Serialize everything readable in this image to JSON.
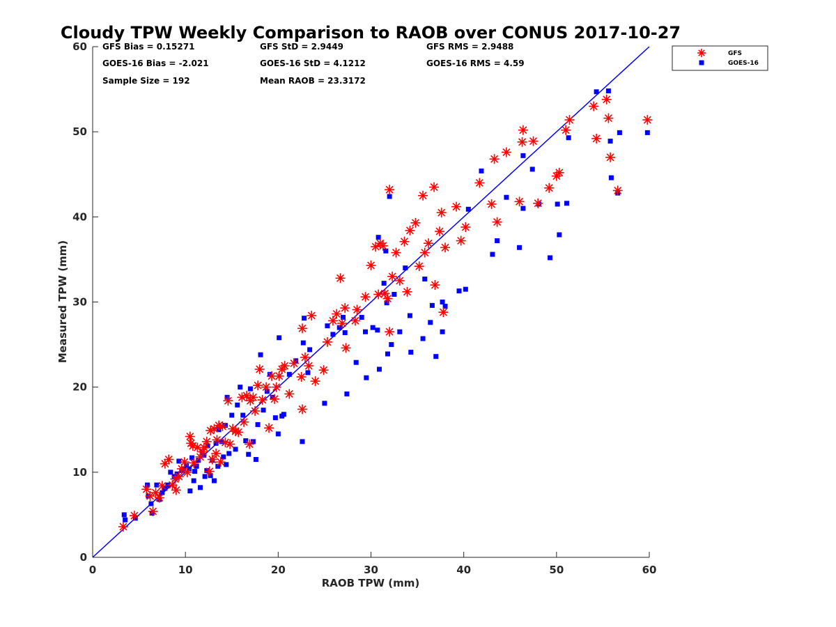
{
  "chart_data": {
    "type": "scatter",
    "title": "Cloudy TPW Weekly Comparison to RAOB over CONUS 2017-10-27",
    "xlabel": "RAOB TPW (mm)",
    "ylabel": "Measured TPW (mm)",
    "xlim": [
      0,
      60
    ],
    "ylim": [
      0,
      60
    ],
    "xticks": [
      "0",
      "10",
      "20",
      "30",
      "40",
      "50",
      "60"
    ],
    "yticks": [
      "0",
      "10",
      "20",
      "30",
      "40",
      "50",
      "60"
    ],
    "grid": false,
    "legend_position": "outside top-right",
    "stats": [
      [
        "GFS Bias = 0.15271",
        "GFS StD = 2.9449",
        "GFS RMS = 2.9488"
      ],
      [
        "GOES-16 Bias = -2.021",
        "GOES-16 StD = 4.1212",
        "GOES-16 RMS = 4.59"
      ],
      [
        "Sample Size = 192",
        "Mean RAOB = 23.3172",
        ""
      ]
    ],
    "reference_line": {
      "type": "one-to-one",
      "from": [
        0,
        0
      ],
      "to": [
        60,
        60
      ],
      "color": "#0000ff"
    },
    "series": [
      {
        "name": "GFS",
        "marker": "asterisk",
        "color": "#ff0000",
        "points": [
          [
            3.3,
            3.6
          ],
          [
            4.5,
            4.9
          ],
          [
            5.8,
            8.0
          ],
          [
            6.2,
            7.2
          ],
          [
            6.5,
            5.4
          ],
          [
            6.8,
            7.6
          ],
          [
            7.2,
            7.0
          ],
          [
            7.5,
            8.4
          ],
          [
            7.8,
            11.0
          ],
          [
            8.2,
            11.5
          ],
          [
            8.6,
            8.5
          ],
          [
            9.0,
            7.9
          ],
          [
            9.3,
            9.5
          ],
          [
            9.6,
            10.4
          ],
          [
            9.9,
            11.2
          ],
          [
            10.2,
            10.0
          ],
          [
            10.5,
            14.2
          ],
          [
            10.6,
            13.4
          ],
          [
            10.9,
            11.1
          ],
          [
            11.3,
            12.9
          ],
          [
            11.6,
            11.8
          ],
          [
            12.0,
            12.9
          ],
          [
            12.3,
            13.6
          ],
          [
            12.6,
            10.1
          ],
          [
            12.9,
            11.5
          ],
          [
            13.1,
            15.1
          ],
          [
            13.3,
            12.2
          ],
          [
            13.6,
            15.5
          ],
          [
            13.8,
            11.2
          ],
          [
            14.0,
            15.4
          ],
          [
            14.3,
            13.5
          ],
          [
            14.6,
            18.4
          ],
          [
            14.8,
            13.3
          ],
          [
            15.1,
            15.1
          ],
          [
            15.4,
            14.8
          ],
          [
            15.7,
            14.7
          ],
          [
            16.1,
            18.8
          ],
          [
            16.3,
            15.9
          ],
          [
            16.6,
            19.0
          ],
          [
            16.9,
            13.3
          ],
          [
            17.0,
            18.4
          ],
          [
            17.3,
            18.8
          ],
          [
            17.5,
            17.2
          ],
          [
            17.8,
            20.2
          ],
          [
            18.0,
            22.1
          ],
          [
            18.3,
            18.5
          ],
          [
            18.7,
            20.0
          ],
          [
            19.0,
            15.2
          ],
          [
            19.3,
            21.3
          ],
          [
            19.6,
            18.6
          ],
          [
            19.8,
            20.0
          ],
          [
            20.1,
            21.3
          ],
          [
            20.4,
            22.1
          ],
          [
            20.7,
            22.5
          ],
          [
            21.2,
            19.2
          ],
          [
            21.7,
            22.8
          ],
          [
            22.5,
            21.2
          ],
          [
            22.6,
            26.9
          ],
          [
            22.6,
            17.4
          ],
          [
            22.9,
            23.5
          ],
          [
            23.3,
            22.5
          ],
          [
            23.6,
            28.4
          ],
          [
            24.0,
            20.7
          ],
          [
            24.9,
            22.0
          ],
          [
            25.3,
            25.3
          ],
          [
            25.9,
            27.8
          ],
          [
            26.3,
            28.6
          ],
          [
            26.7,
            32.8
          ],
          [
            26.9,
            27.5
          ],
          [
            27.2,
            29.3
          ],
          [
            27.3,
            24.6
          ],
          [
            28.3,
            27.8
          ],
          [
            28.5,
            29.1
          ],
          [
            29.4,
            30.6
          ],
          [
            30.0,
            34.3
          ],
          [
            30.5,
            36.5
          ],
          [
            30.8,
            30.9
          ],
          [
            31.0,
            36.9
          ],
          [
            31.3,
            36.6
          ],
          [
            31.5,
            31.0
          ],
          [
            31.8,
            30.4
          ],
          [
            32.0,
            43.2
          ],
          [
            32.0,
            26.5
          ],
          [
            32.3,
            33.0
          ],
          [
            32.7,
            35.8
          ],
          [
            33.1,
            32.5
          ],
          [
            33.6,
            37.1
          ],
          [
            33.9,
            31.2
          ],
          [
            34.2,
            38.4
          ],
          [
            34.8,
            39.3
          ],
          [
            35.2,
            34.2
          ],
          [
            35.6,
            42.5
          ],
          [
            35.8,
            35.8
          ],
          [
            36.2,
            36.9
          ],
          [
            36.8,
            43.5
          ],
          [
            36.9,
            32.0
          ],
          [
            37.4,
            38.3
          ],
          [
            37.6,
            40.5
          ],
          [
            37.8,
            28.8
          ],
          [
            38.0,
            36.4
          ],
          [
            39.2,
            41.2
          ],
          [
            39.7,
            37.2
          ],
          [
            40.2,
            38.8
          ],
          [
            41.7,
            44.0
          ],
          [
            43.0,
            41.5
          ],
          [
            43.3,
            46.8
          ],
          [
            43.6,
            39.4
          ],
          [
            44.6,
            47.6
          ],
          [
            46.0,
            41.8
          ],
          [
            46.3,
            48.8
          ],
          [
            46.4,
            50.2
          ],
          [
            47.5,
            48.9
          ],
          [
            48.0,
            41.6
          ],
          [
            49.2,
            43.4
          ],
          [
            50.0,
            44.8
          ],
          [
            50.3,
            45.2
          ],
          [
            51.0,
            50.2
          ],
          [
            51.4,
            51.4
          ],
          [
            54.0,
            53.0
          ],
          [
            54.3,
            49.2
          ],
          [
            55.4,
            53.8
          ],
          [
            55.6,
            51.6
          ],
          [
            55.8,
            47.0
          ],
          [
            56.6,
            43.1
          ],
          [
            59.8,
            51.4
          ],
          [
            10.8,
            13.1
          ],
          [
            11.9,
            12.4
          ],
          [
            12.7,
            14.9
          ],
          [
            13.4,
            13.8
          ],
          [
            8.9,
            9.2
          ]
        ]
      },
      {
        "name": "GOES-16",
        "marker": "square",
        "color": "#0000ff",
        "points": [
          [
            3.4,
            5.0
          ],
          [
            3.5,
            4.4
          ],
          [
            4.6,
            4.6
          ],
          [
            5.9,
            8.5
          ],
          [
            6.0,
            7.2
          ],
          [
            6.3,
            6.3
          ],
          [
            6.4,
            5.2
          ],
          [
            6.9,
            8.5
          ],
          [
            7.2,
            6.8
          ],
          [
            7.5,
            7.6
          ],
          [
            7.8,
            8.1
          ],
          [
            8.1,
            8.5
          ],
          [
            8.4,
            10.0
          ],
          [
            8.8,
            9.5
          ],
          [
            9.1,
            9.8
          ],
          [
            9.3,
            11.3
          ],
          [
            9.6,
            10.2
          ],
          [
            9.8,
            10.4
          ],
          [
            10.1,
            10.8
          ],
          [
            10.4,
            10.4
          ],
          [
            10.5,
            7.8
          ],
          [
            10.7,
            11.7
          ],
          [
            10.9,
            9.0
          ],
          [
            11.2,
            10.7
          ],
          [
            11.4,
            11.4
          ],
          [
            11.6,
            8.2
          ],
          [
            11.8,
            12.3
          ],
          [
            12.1,
            9.5
          ],
          [
            12.3,
            10.2
          ],
          [
            12.4,
            13.1
          ],
          [
            12.7,
            9.6
          ],
          [
            12.9,
            11.4
          ],
          [
            13.1,
            9.0
          ],
          [
            13.3,
            13.4
          ],
          [
            13.5,
            10.7
          ],
          [
            13.6,
            15.0
          ],
          [
            13.9,
            13.6
          ],
          [
            14.1,
            11.8
          ],
          [
            14.3,
            15.5
          ],
          [
            14.4,
            10.9
          ],
          [
            14.5,
            18.8
          ],
          [
            14.7,
            12.2
          ],
          [
            15.0,
            16.7
          ],
          [
            15.4,
            12.7
          ],
          [
            15.6,
            17.9
          ],
          [
            15.9,
            20.0
          ],
          [
            16.2,
            16.7
          ],
          [
            16.5,
            13.7
          ],
          [
            16.8,
            12.1
          ],
          [
            17.0,
            19.8
          ],
          [
            17.3,
            13.6
          ],
          [
            17.6,
            11.5
          ],
          [
            17.8,
            15.6
          ],
          [
            18.1,
            23.8
          ],
          [
            18.4,
            17.3
          ],
          [
            18.8,
            19.5
          ],
          [
            19.1,
            21.5
          ],
          [
            19.4,
            18.8
          ],
          [
            19.7,
            16.4
          ],
          [
            20.0,
            14.5
          ],
          [
            20.1,
            25.8
          ],
          [
            20.4,
            16.6
          ],
          [
            20.6,
            16.8
          ],
          [
            21.2,
            21.5
          ],
          [
            21.9,
            23.1
          ],
          [
            22.6,
            13.6
          ],
          [
            22.7,
            25.2
          ],
          [
            22.8,
            28.1
          ],
          [
            23.2,
            21.7
          ],
          [
            23.4,
            24.4
          ],
          [
            25.0,
            18.1
          ],
          [
            25.3,
            27.2
          ],
          [
            25.9,
            26.2
          ],
          [
            26.6,
            27.0
          ],
          [
            27.0,
            28.2
          ],
          [
            27.2,
            26.4
          ],
          [
            27.4,
            19.2
          ],
          [
            28.4,
            22.9
          ],
          [
            29.0,
            28.2
          ],
          [
            29.4,
            26.5
          ],
          [
            29.5,
            21.1
          ],
          [
            30.2,
            27.0
          ],
          [
            30.7,
            26.7
          ],
          [
            30.8,
            37.6
          ],
          [
            30.9,
            22.1
          ],
          [
            31.4,
            32.2
          ],
          [
            31.6,
            36.0
          ],
          [
            31.7,
            29.9
          ],
          [
            31.8,
            23.9
          ],
          [
            32.0,
            42.4
          ],
          [
            32.2,
            25.0
          ],
          [
            32.5,
            30.9
          ],
          [
            33.1,
            26.5
          ],
          [
            33.7,
            34.0
          ],
          [
            34.2,
            28.4
          ],
          [
            34.3,
            24.1
          ],
          [
            35.6,
            25.7
          ],
          [
            35.8,
            32.7
          ],
          [
            36.4,
            27.6
          ],
          [
            36.6,
            29.6
          ],
          [
            37.0,
            23.6
          ],
          [
            37.7,
            30.0
          ],
          [
            38.0,
            29.5
          ],
          [
            37.7,
            26.5
          ],
          [
            39.5,
            31.3
          ],
          [
            40.2,
            31.5
          ],
          [
            40.5,
            40.9
          ],
          [
            41.9,
            45.4
          ],
          [
            43.1,
            35.6
          ],
          [
            43.6,
            37.2
          ],
          [
            44.6,
            42.3
          ],
          [
            46.0,
            36.4
          ],
          [
            46.4,
            41.0
          ],
          [
            46.4,
            47.2
          ],
          [
            47.4,
            45.6
          ],
          [
            48.1,
            41.5
          ],
          [
            49.3,
            35.2
          ],
          [
            50.1,
            41.5
          ],
          [
            50.3,
            37.9
          ],
          [
            51.1,
            41.6
          ],
          [
            51.3,
            49.3
          ],
          [
            54.3,
            54.7
          ],
          [
            55.6,
            54.8
          ],
          [
            55.8,
            48.9
          ],
          [
            55.9,
            44.6
          ],
          [
            56.6,
            42.8
          ],
          [
            56.8,
            49.9
          ],
          [
            59.8,
            49.9
          ],
          [
            12.0,
            12.0
          ],
          [
            11.0,
            10.1
          ]
        ]
      }
    ]
  }
}
